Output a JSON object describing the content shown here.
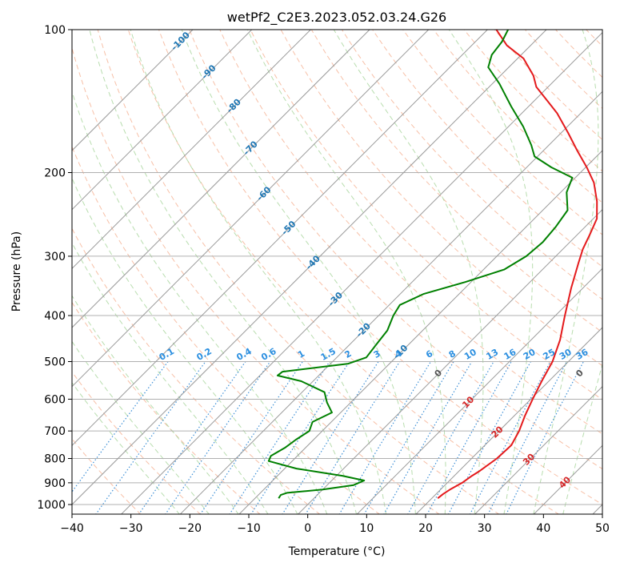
{
  "chart_data": {
    "type": "skew-t",
    "title": "wetPf2_C2E3.2023.052.03.24.G26",
    "xlabel": "Temperature (°C)",
    "ylabel": "Pressure (hPa)",
    "xlim": [
      -40,
      50
    ],
    "ylim": [
      1050,
      100
    ],
    "x_ticks": [
      "−40",
      "−30",
      "−20",
      "−10",
      "0",
      "10",
      "20",
      "30",
      "40",
      "50"
    ],
    "x_tick_values": [
      -40,
      -30,
      -20,
      -10,
      0,
      10,
      20,
      30,
      40,
      50
    ],
    "y_ticks": [
      "1000",
      "900",
      "800",
      "700",
      "600",
      "500",
      "400",
      "300",
      "200",
      "100"
    ],
    "y_tick_values": [
      1000,
      900,
      800,
      700,
      600,
      500,
      400,
      300,
      200,
      100
    ],
    "grid": true,
    "skew_isotherms_c": [
      -100,
      -90,
      -80,
      -70,
      -60,
      -50,
      -40,
      -30,
      -20,
      -10,
      0,
      10,
      20,
      30,
      40,
      50
    ],
    "isotherm_labels": [
      {
        "text": "-100",
        "t": -100,
        "p": 106
      },
      {
        "text": "-90",
        "t": -90,
        "p": 123
      },
      {
        "text": "-80",
        "t": -80,
        "p": 145
      },
      {
        "text": "-70",
        "t": -70,
        "p": 178
      },
      {
        "text": "-60",
        "t": -60,
        "p": 222
      },
      {
        "text": "-50",
        "t": -50,
        "p": 262
      },
      {
        "text": "-40",
        "t": -40,
        "p": 310
      },
      {
        "text": "-30",
        "t": -30,
        "p": 370
      },
      {
        "text": "-20",
        "t": -20,
        "p": 430
      },
      {
        "text": "-10",
        "t": -10,
        "p": 478
      },
      {
        "text": "0",
        "t": 0,
        "p": 530
      },
      {
        "text": "10",
        "t": 10,
        "p": 610
      },
      {
        "text": "20",
        "t": 20,
        "p": 705
      },
      {
        "text": "30",
        "t": 30,
        "p": 805
      },
      {
        "text": "40",
        "t": 40,
        "p": 900
      }
    ],
    "mixing_ratio_labels": [
      "0.1",
      "0.2",
      "0.4",
      "0.6",
      "1",
      "1.5",
      "2",
      "3",
      "4",
      "6",
      "8",
      "10",
      "13",
      "16",
      "20",
      "25",
      "30",
      "36"
    ],
    "mixing_ratio_values": [
      0.1,
      0.2,
      0.4,
      0.6,
      1,
      1.5,
      2,
      3,
      4,
      6,
      8,
      10,
      13,
      16,
      20,
      25,
      30,
      36
    ],
    "mixing_ratio_label_pressure": 500,
    "series": [
      {
        "name": "Temperature",
        "color": "#e41a1c",
        "points": [
          {
            "p": 970,
            "t": 21.0
          },
          {
            "p": 950,
            "t": 21.2
          },
          {
            "p": 930,
            "t": 21.6
          },
          {
            "p": 900,
            "t": 22.5
          },
          {
            "p": 870,
            "t": 23.0
          },
          {
            "p": 850,
            "t": 23.5
          },
          {
            "p": 800,
            "t": 24.3
          },
          {
            "p": 750,
            "t": 24.5
          },
          {
            "p": 700,
            "t": 23.4
          },
          {
            "p": 650,
            "t": 21.8
          },
          {
            "p": 600,
            "t": 20.3
          },
          {
            "p": 550,
            "t": 18.8
          },
          {
            "p": 500,
            "t": 17.3
          },
          {
            "p": 450,
            "t": 14.9
          },
          {
            "p": 400,
            "t": 11.6
          },
          {
            "p": 350,
            "t": 8.0
          },
          {
            "p": 310,
            "t": 5.0
          },
          {
            "p": 290,
            "t": 3.4
          },
          {
            "p": 270,
            "t": 2.1
          },
          {
            "p": 250,
            "t": 0.6
          },
          {
            "p": 230,
            "t": -2.3
          },
          {
            "p": 210,
            "t": -6.0
          },
          {
            "p": 195,
            "t": -9.8
          },
          {
            "p": 180,
            "t": -14.2
          },
          {
            "p": 165,
            "t": -18.8
          },
          {
            "p": 150,
            "t": -24.0
          },
          {
            "p": 140,
            "t": -28.3
          },
          {
            "p": 132,
            "t": -32.0
          },
          {
            "p": 125,
            "t": -34.4
          },
          {
            "p": 115,
            "t": -39.0
          },
          {
            "p": 108,
            "t": -44.0
          },
          {
            "p": 100,
            "t": -48.5
          }
        ]
      },
      {
        "name": "Dewpoint",
        "color": "#008000",
        "points": [
          {
            "p": 970,
            "t": -6.0
          },
          {
            "p": 955,
            "t": -6.2
          },
          {
            "p": 945,
            "t": -5.5
          },
          {
            "p": 930,
            "t": 0.0
          },
          {
            "p": 910,
            "t": 4.5
          },
          {
            "p": 890,
            "t": 5.5
          },
          {
            "p": 870,
            "t": 1.0
          },
          {
            "p": 840,
            "t": -8.0
          },
          {
            "p": 810,
            "t": -14.0
          },
          {
            "p": 790,
            "t": -14.5
          },
          {
            "p": 760,
            "t": -13.5
          },
          {
            "p": 730,
            "t": -13.0
          },
          {
            "p": 700,
            "t": -12.2
          },
          {
            "p": 670,
            "t": -13.2
          },
          {
            "p": 640,
            "t": -11.5
          },
          {
            "p": 610,
            "t": -14.0
          },
          {
            "p": 580,
            "t": -16.2
          },
          {
            "p": 550,
            "t": -22.0
          },
          {
            "p": 535,
            "t": -27.0
          },
          {
            "p": 525,
            "t": -26.8
          },
          {
            "p": 505,
            "t": -17.0
          },
          {
            "p": 490,
            "t": -15.0
          },
          {
            "p": 460,
            "t": -15.5
          },
          {
            "p": 430,
            "t": -16.0
          },
          {
            "p": 400,
            "t": -17.5
          },
          {
            "p": 380,
            "t": -18.2
          },
          {
            "p": 360,
            "t": -16.0
          },
          {
            "p": 340,
            "t": -11.0
          },
          {
            "p": 320,
            "t": -6.5
          },
          {
            "p": 300,
            "t": -5.0
          },
          {
            "p": 280,
            "t": -4.6
          },
          {
            "p": 260,
            "t": -5.0
          },
          {
            "p": 240,
            "t": -5.8
          },
          {
            "p": 220,
            "t": -9.0
          },
          {
            "p": 205,
            "t": -10.5
          },
          {
            "p": 195,
            "t": -15.8
          },
          {
            "p": 185,
            "t": -20.5
          },
          {
            "p": 175,
            "t": -23.0
          },
          {
            "p": 160,
            "t": -27.5
          },
          {
            "p": 145,
            "t": -33.0
          },
          {
            "p": 130,
            "t": -38.8
          },
          {
            "p": 120,
            "t": -43.5
          },
          {
            "p": 113,
            "t": -45.0
          },
          {
            "p": 106,
            "t": -45.5
          },
          {
            "p": 100,
            "t": -46.5
          }
        ]
      }
    ],
    "lcl_marker": {
      "text": "0",
      "p": 530,
      "t": 24
    }
  }
}
